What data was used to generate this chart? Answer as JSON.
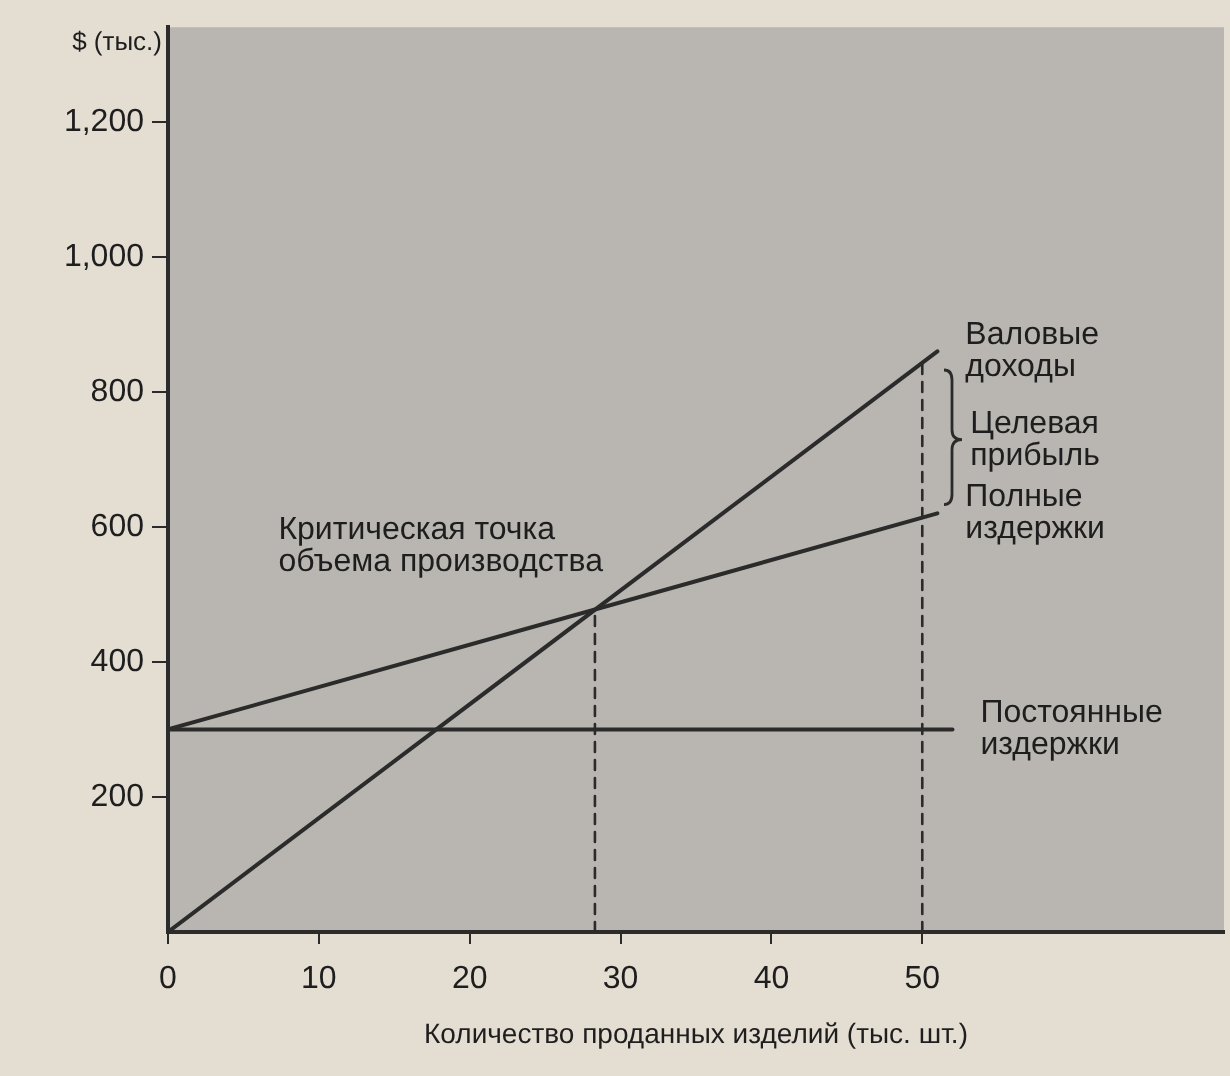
{
  "chart_data": {
    "type": "line",
    "ylabel": "$ (тыс.)",
    "xlabel": "Количество проданных изделий (тыс. шт.)",
    "xlim": [
      0,
      70
    ],
    "xticks": [
      0,
      10,
      20,
      30,
      40,
      50
    ],
    "ylim": [
      0,
      1340
    ],
    "yticks": [
      {
        "value": 200,
        "label": "200"
      },
      {
        "value": 400,
        "label": "400"
      },
      {
        "value": 600,
        "label": "600"
      },
      {
        "value": 800,
        "label": "800"
      },
      {
        "value": 1000,
        "label": "1,000"
      },
      {
        "value": 1200,
        "label": "1,200"
      }
    ],
    "grid": false,
    "legend": false,
    "marker": "none",
    "series": [
      {
        "name": "Валовые доходы",
        "color": "#2b2b2b",
        "x": [
          0,
          51
        ],
        "values": [
          0,
          860
        ]
      },
      {
        "name": "Полные издержки",
        "color": "#2b2b2b",
        "x": [
          0,
          51
        ],
        "values": [
          300,
          620
        ]
      },
      {
        "name": "Постоянные издержки",
        "color": "#2b2b2b",
        "x": [
          0,
          52
        ],
        "values": [
          300,
          300
        ]
      },
      {
        "color": "#2b2b2b",
        "x": [
          28.3,
          28.3
        ],
        "values": [
          0,
          477
        ],
        "line_style": "dashed"
      },
      {
        "color": "#2b2b2b",
        "x": [
          50,
          50
        ],
        "values": [
          0,
          843
        ],
        "line_style": "dashed"
      }
    ],
    "annotations": [
      {
        "text": "Критическая точка объема производства",
        "x": 28.3,
        "y": 477
      },
      {
        "text": "Целевая прибыль",
        "x": 50,
        "y": 728
      }
    ]
  }
}
